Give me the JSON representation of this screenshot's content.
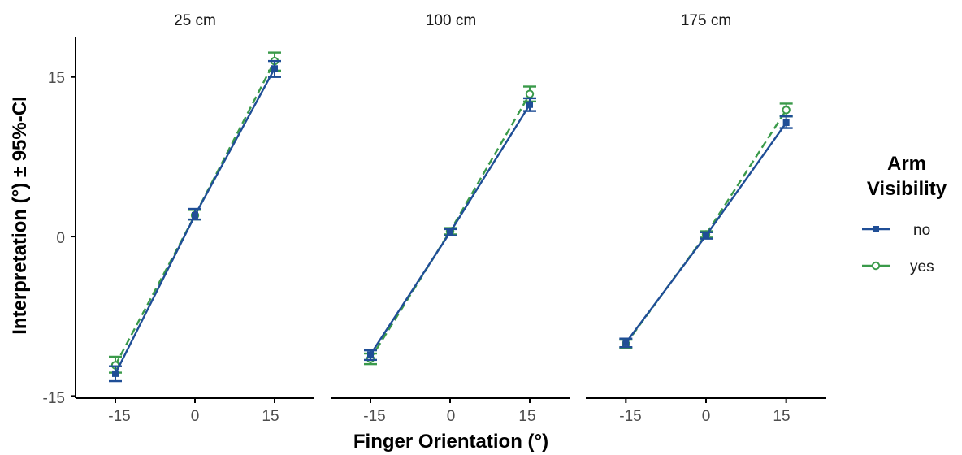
{
  "colors": {
    "no": "#1f4e96",
    "yes": "#3a9a4a",
    "axis": "#000000",
    "tick_text": "#4d4d4d"
  },
  "chart_data": {
    "type": "line",
    "facets": [
      "25 cm",
      "100 cm",
      "175 cm"
    ],
    "x": [
      -15,
      0,
      15
    ],
    "x_tick_labels": [
      "-15",
      "0",
      "15"
    ],
    "y_tick_labels": [
      "15",
      "0",
      "-15"
    ],
    "y_ticks": [
      15,
      0,
      -15
    ],
    "xlim": [
      -22.5,
      22.5
    ],
    "ylim": [
      -15.2,
      18.8
    ],
    "xlabel": "Finger Orientation (°)",
    "ylabel": "Interpretation (°) ± 95%-CI",
    "legend": {
      "title_line1": "Arm",
      "title_line2": "Visibility",
      "position": "right",
      "entries": [
        "no",
        "yes"
      ]
    },
    "grid": false,
    "series": [
      {
        "name": "no",
        "marker": "filled-square",
        "line": "solid",
        "panels": [
          {
            "facet": "25 cm",
            "y": [
              -12.9,
              2.0,
              15.8
            ],
            "lo": [
              -13.6,
              1.6,
              15.0
            ],
            "hi": [
              -12.2,
              2.6,
              16.5
            ]
          },
          {
            "facet": "100 cm",
            "y": [
              -11.1,
              0.4,
              12.4
            ],
            "lo": [
              -11.6,
              0.1,
              11.8
            ],
            "hi": [
              -10.7,
              0.7,
              13.0
            ]
          },
          {
            "facet": "175 cm",
            "y": [
              -10.0,
              0.1,
              10.7
            ],
            "lo": [
              -10.4,
              -0.2,
              10.2
            ],
            "hi": [
              -9.6,
              0.4,
              11.3
            ]
          }
        ]
      },
      {
        "name": "yes",
        "marker": "open-circle",
        "line": "dashed",
        "panels": [
          {
            "facet": "25 cm",
            "y": [
              -12.1,
              2.0,
              16.5
            ],
            "lo": [
              -12.8,
              1.6,
              15.6
            ],
            "hi": [
              -11.3,
              2.5,
              17.3
            ]
          },
          {
            "facet": "100 cm",
            "y": [
              -11.5,
              0.5,
              13.4
            ],
            "lo": [
              -12.0,
              0.2,
              12.7
            ],
            "hi": [
              -11.0,
              0.8,
              14.1
            ]
          },
          {
            "facet": "175 cm",
            "y": [
              -10.1,
              0.2,
              11.9
            ],
            "lo": [
              -10.5,
              -0.1,
              11.3
            ],
            "hi": [
              -9.7,
              0.5,
              12.5
            ]
          }
        ]
      }
    ]
  }
}
